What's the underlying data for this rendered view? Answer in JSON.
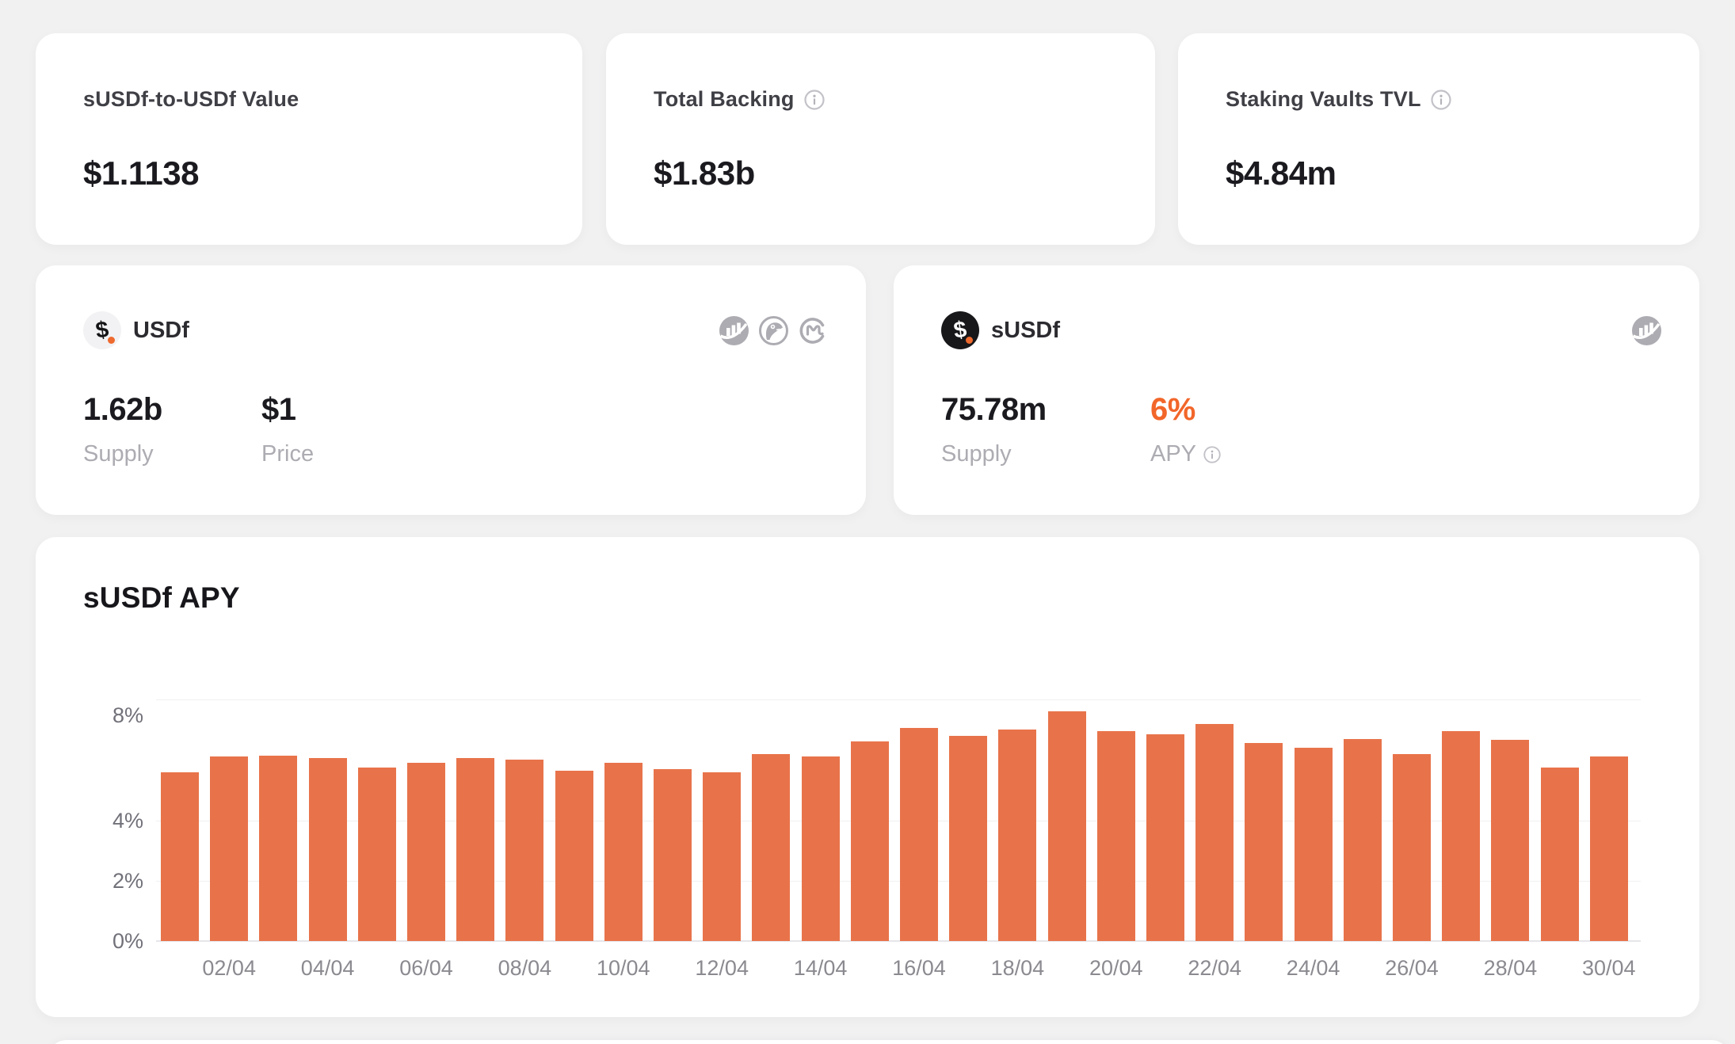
{
  "stats": [
    {
      "label": "sUSDf-to-USDf Value",
      "value": "$1.1138",
      "has_info": false
    },
    {
      "label": "Total Backing",
      "value": "$1.83b",
      "has_info": true
    },
    {
      "label": "Staking Vaults TVL",
      "value": "$4.84m",
      "has_info": true
    }
  ],
  "tokens": [
    {
      "symbol": "USDf",
      "coin_glyph": "$",
      "links": [
        "chart-stats",
        "coingecko",
        "coinmarketcap"
      ],
      "metrics": [
        {
          "value": "1.62b",
          "label": "Supply"
        },
        {
          "value": "$1",
          "label": "Price"
        }
      ]
    },
    {
      "symbol": "sUSDf",
      "coin_glyph": "$",
      "links": [
        "chart-stats"
      ],
      "metrics": [
        {
          "value": "75.78m",
          "label": "Supply"
        },
        {
          "value": "6%",
          "label": "APY",
          "accent": true,
          "has_info": true
        }
      ]
    }
  ],
  "chart_data": {
    "type": "bar",
    "title": "sUSDf APY",
    "unit": "%",
    "ylim": [
      0,
      8
    ],
    "grid": true,
    "legend": "none",
    "bar_color": "#E8734A",
    "x": [
      "01/04",
      "02/04",
      "03/04",
      "04/04",
      "05/04",
      "06/04",
      "07/04",
      "08/04",
      "09/04",
      "10/04",
      "11/04",
      "12/04",
      "13/04",
      "14/04",
      "15/04",
      "16/04",
      "17/04",
      "18/04",
      "19/04",
      "20/04",
      "21/04",
      "22/04",
      "23/04",
      "24/04",
      "25/04",
      "26/04",
      "27/04",
      "28/04",
      "29/04",
      "30/04"
    ],
    "values": [
      5.6,
      6.1,
      6.15,
      6.05,
      5.75,
      5.9,
      6.05,
      6.0,
      5.65,
      5.9,
      5.7,
      5.6,
      6.2,
      6.1,
      6.6,
      7.05,
      6.8,
      7.0,
      7.6,
      6.95,
      6.85,
      7.2,
      6.55,
      6.4,
      6.7,
      6.2,
      6.95,
      6.65,
      5.75,
      6.1
    ],
    "x_tick_labels": [
      "02/04",
      "04/04",
      "06/04",
      "08/04",
      "10/04",
      "12/04",
      "14/04",
      "16/04",
      "18/04",
      "20/04",
      "22/04",
      "24/04",
      "26/04",
      "28/04",
      "30/04"
    ],
    "yticks": [
      {
        "label": "8%",
        "value": 8
      },
      {
        "label": "4%",
        "value": 4
      },
      {
        "label": "2%",
        "value": 2
      },
      {
        "label": "0%",
        "value": 0
      }
    ]
  },
  "colors": {
    "accent_orange": "#F2662A",
    "bar_orange": "#E8734A",
    "page_background": "#F1F1F2",
    "card_background": "#FFFFFF"
  }
}
